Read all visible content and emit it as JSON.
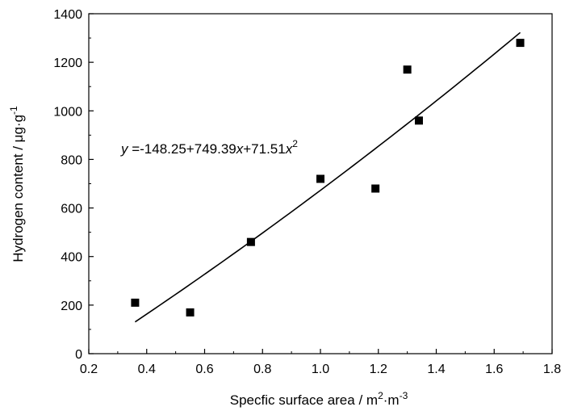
{
  "chart_data": {
    "type": "scatter",
    "title": "",
    "xlabel": {
      "main": "Specfic surface area / m",
      "sup1": "2",
      "mid": "·m",
      "sup2": "-3"
    },
    "ylabel": {
      "main": "Hydrogen content / μg·g",
      "sup": "-1"
    },
    "xlim": [
      0.2,
      1.8
    ],
    "ylim": [
      0,
      1400
    ],
    "xticks": [
      "0.2",
      "0.4",
      "0.6",
      "0.8",
      "1.0",
      "1.2",
      "1.4",
      "1.6",
      "1.8"
    ],
    "yticks": [
      "0",
      "200",
      "400",
      "600",
      "800",
      "1000",
      "1200",
      "1400"
    ],
    "grid": false,
    "legend": "none",
    "points": [
      {
        "x": 0.36,
        "y": 210
      },
      {
        "x": 0.55,
        "y": 170
      },
      {
        "x": 0.76,
        "y": 460
      },
      {
        "x": 1.0,
        "y": 720
      },
      {
        "x": 1.19,
        "y": 680
      },
      {
        "x": 1.3,
        "y": 1170
      },
      {
        "x": 1.34,
        "y": 960
      },
      {
        "x": 1.69,
        "y": 1280
      }
    ],
    "fit": {
      "type": "quadratic",
      "coefficients": [
        -148.25,
        749.39,
        71.51
      ],
      "x_range": [
        0.36,
        1.69
      ]
    },
    "annotation": {
      "var_y": "y",
      "eq_part1": " =-148.25+749.39",
      "var_x": "x",
      "eq_part2": "+71.51",
      "var_x2": "x",
      "exp": "2"
    },
    "colors": {
      "marker": "#000000",
      "line": "#000000"
    }
  }
}
